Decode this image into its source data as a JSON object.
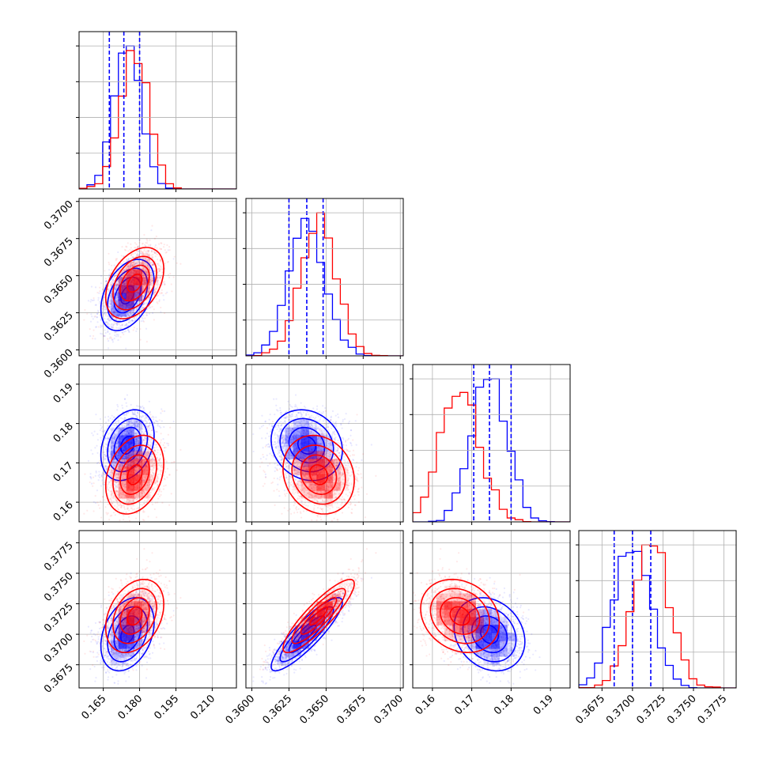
{
  "colors": {
    "series_a": "#0000ff",
    "series_b": "#ff0000",
    "grid": "#b0b0b0",
    "axis": "#000000"
  },
  "chart_data": {
    "type": "corner",
    "grid": true,
    "parameters": [
      {
        "index": 0,
        "range": [
          0.155,
          0.22
        ],
        "ticks": [
          0.165,
          0.18,
          0.195,
          0.21
        ],
        "tick_labels": [
          "0.165",
          "0.180",
          "0.195",
          "0.210"
        ]
      },
      {
        "index": 1,
        "range": [
          0.3596,
          0.3702
        ],
        "ticks": [
          0.36,
          0.3625,
          0.365,
          0.3675,
          0.37
        ],
        "tick_labels": [
          "0.3600",
          "0.3625",
          "0.3650",
          "0.3675",
          "0.3700"
        ]
      },
      {
        "index": 2,
        "range": [
          0.155,
          0.195
        ],
        "ticks": [
          0.16,
          0.17,
          0.18,
          0.19
        ],
        "tick_labels": [
          "0.16",
          "0.17",
          "0.18",
          "0.19"
        ]
      },
      {
        "index": 3,
        "range": [
          0.3656,
          0.3785
        ],
        "ticks": [
          0.3675,
          0.37,
          0.3725,
          0.375,
          0.3775
        ],
        "tick_labels": [
          "0.3675",
          "0.3700",
          "0.3725",
          "0.3750",
          "0.3775"
        ]
      }
    ],
    "series": [
      {
        "color": "#0000ff",
        "mean": [
          0.175,
          0.3637,
          0.1745,
          0.37
        ],
        "std": [
          0.0055,
          0.0012,
          0.0045,
          0.0015
        ],
        "correlation": [
          [
            1.0,
            0.4,
            0.28,
            0.32
          ],
          [
            0.4,
            1.0,
            -0.15,
            0.88
          ],
          [
            0.28,
            -0.15,
            1.0,
            -0.2
          ],
          [
            0.32,
            0.88,
            -0.2,
            1.0
          ]
        ],
        "quantiles_16_50_84": [
          [
            0.1675,
            0.1735,
            0.18
          ],
          [
            0.3625,
            0.3637,
            0.3648
          ],
          [
            0.1705,
            0.1745,
            0.18
          ],
          [
            0.3685,
            0.37,
            0.3715
          ]
        ]
      },
      {
        "color": "#ff0000",
        "mean": [
          0.178,
          0.3645,
          0.167,
          0.3715
        ],
        "std": [
          0.006,
          0.0012,
          0.005,
          0.0015
        ],
        "correlation": [
          [
            1.0,
            0.4,
            0.28,
            0.32
          ],
          [
            0.4,
            1.0,
            -0.15,
            0.88
          ],
          [
            0.28,
            -0.15,
            1.0,
            -0.2
          ],
          [
            0.32,
            0.88,
            -0.2,
            1.0
          ]
        ],
        "quantiles_16_50_84": []
      }
    ]
  }
}
